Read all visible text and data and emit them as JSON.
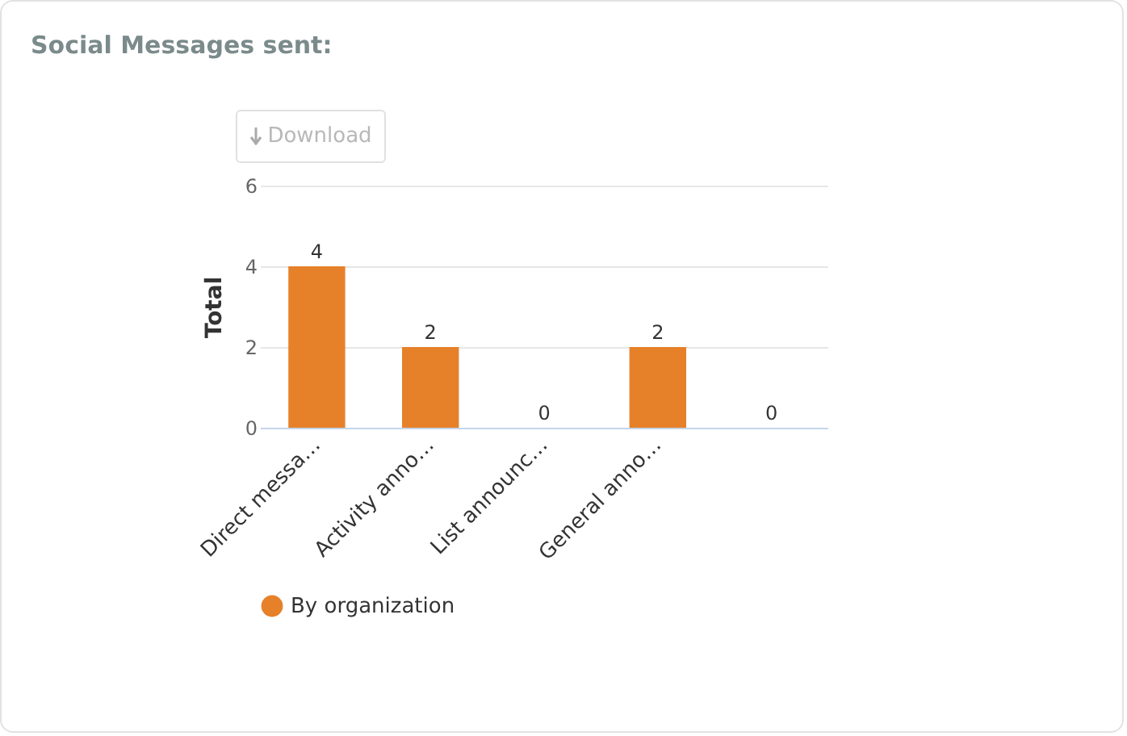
{
  "chart_data": {
    "type": "bar",
    "title": "Social Messages sent:",
    "ylabel": "Total",
    "categories": [
      "Direct messa…",
      "Activity anno…",
      "List announc…",
      "General anno…",
      null
    ],
    "series": [
      {
        "name": "By organization",
        "color": "#e6812a",
        "values": [
          4,
          2,
          0,
          2,
          0
        ]
      }
    ],
    "ylim": [
      0,
      6
    ],
    "yticks": [
      0,
      2,
      4,
      6
    ],
    "grid": "y",
    "legend": "bottom",
    "data_labels": true,
    "annotations": [
      "Download"
    ]
  }
}
